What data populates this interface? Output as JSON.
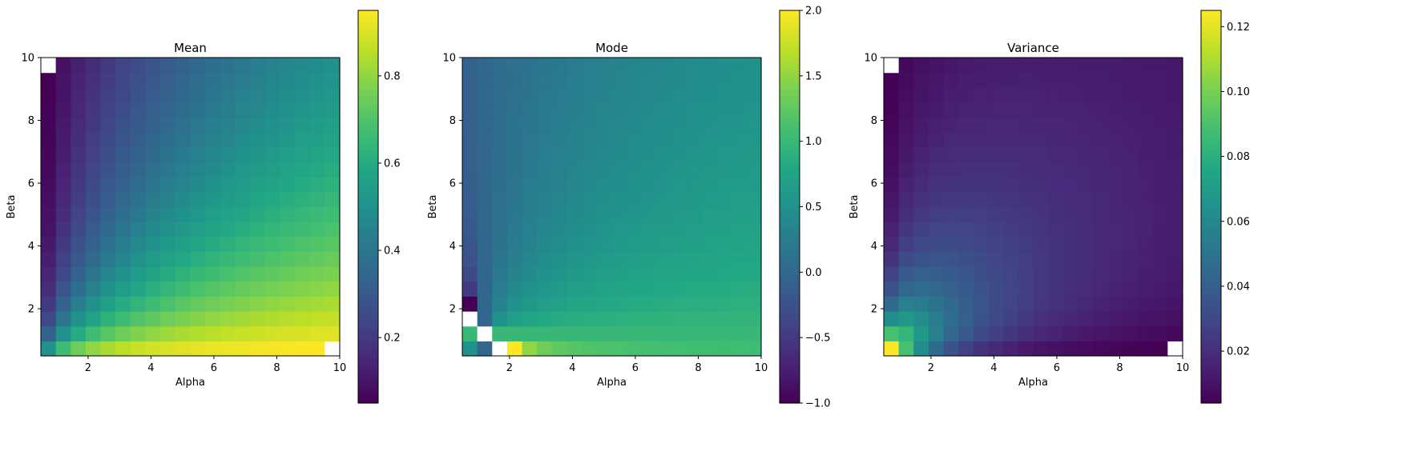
{
  "chart_data": [
    {
      "type": "heatmap",
      "title": "Mean",
      "xlabel": "Alpha",
      "ylabel": "Beta",
      "quantity": "mean",
      "xlim": [
        0.5,
        10
      ],
      "ylim": [
        0.5,
        10
      ],
      "grid_size": [
        20,
        20
      ],
      "alpha_range": [
        0.5,
        10
      ],
      "beta_range": [
        0.5,
        10
      ],
      "xticks": [
        2,
        4,
        6,
        8,
        10
      ],
      "yticks": [
        2,
        4,
        6,
        8,
        10
      ],
      "colorbar": {
        "vmin": 0.05,
        "vmax": 0.95,
        "ticks": [
          0.2,
          0.4,
          0.6,
          0.8
        ],
        "tick_labels": [
          "0.2",
          "0.4",
          "0.6",
          "0.8"
        ]
      },
      "colormap": "viridis",
      "grid": false
    },
    {
      "type": "heatmap",
      "title": "Mode",
      "xlabel": "Alpha",
      "ylabel": "Beta",
      "quantity": "mode",
      "xlim": [
        0.5,
        10
      ],
      "ylim": [
        0.5,
        10
      ],
      "grid_size": [
        20,
        20
      ],
      "alpha_range": [
        0.5,
        10
      ],
      "beta_range": [
        0.5,
        10
      ],
      "xticks": [
        2,
        4,
        6,
        8,
        10
      ],
      "yticks": [
        2,
        4,
        6,
        8,
        10
      ],
      "colorbar": {
        "vmin": -1.0,
        "vmax": 2.0,
        "ticks": [
          -1.0,
          -0.5,
          0.0,
          0.5,
          1.0,
          1.5,
          2.0
        ],
        "tick_labels": [
          "−1.0",
          "−0.5",
          "0.0",
          "0.5",
          "1.0",
          "1.5",
          "2.0"
        ]
      },
      "colormap": "viridis",
      "undefined_cells_color": "#ffffff",
      "grid": false
    },
    {
      "type": "heatmap",
      "title": "Variance",
      "xlabel": "Alpha",
      "ylabel": "Beta",
      "quantity": "variance",
      "xlim": [
        0.5,
        10
      ],
      "ylim": [
        0.5,
        10
      ],
      "grid_size": [
        20,
        20
      ],
      "alpha_range": [
        0.5,
        10
      ],
      "beta_range": [
        0.5,
        10
      ],
      "xticks": [
        2,
        4,
        6,
        8,
        10
      ],
      "yticks": [
        2,
        4,
        6,
        8,
        10
      ],
      "colorbar": {
        "vmin": 0.004,
        "vmax": 0.125,
        "ticks": [
          0.02,
          0.04,
          0.06,
          0.08,
          0.1,
          0.12
        ],
        "tick_labels": [
          "0.02",
          "0.04",
          "0.06",
          "0.08",
          "0.10",
          "0.12"
        ]
      },
      "colormap": "viridis",
      "grid": false
    }
  ]
}
